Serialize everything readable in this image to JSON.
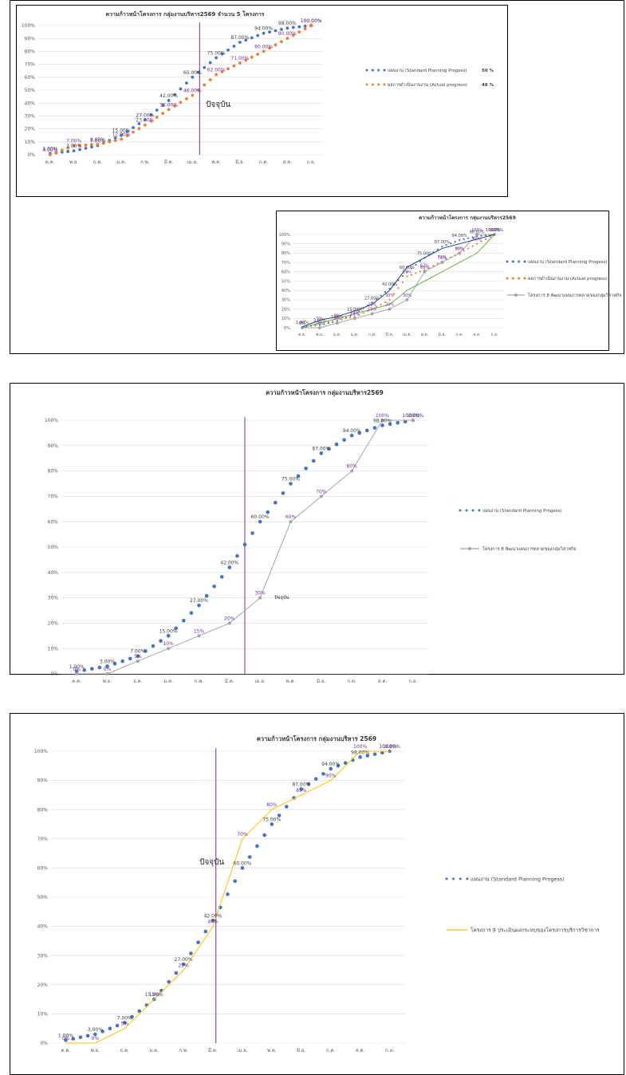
{
  "chart_data": [
    {
      "type": "line",
      "title": "ความก้าวหน้าโครงการ กลุ่มงานบริหาร2569 จำนวน 5 โครงการ",
      "categories": [
        "ต.ค.",
        "พ.ย.",
        "ธ.ค.",
        "ม.ค.",
        "ก.พ.",
        "มี.ค.",
        "เม.ย.",
        "พ.ค.",
        "มิ.ย.",
        "ก.ค.",
        "ส.ค.",
        "ก.ย."
      ],
      "y_ticks": [
        "0%",
        "10%",
        "20%",
        "30%",
        "40%",
        "50%",
        "60%",
        "70%",
        "80%",
        "90%",
        "100%"
      ],
      "ylim": [
        0,
        100
      ],
      "today_label": "ปัจจุบัน",
      "series": [
        {
          "name": "แผนงาน (Standard Planning Progess)",
          "color": "#4472c4",
          "style": "dotted",
          "values": [
            1,
            3,
            7,
            15,
            27,
            42,
            60,
            75,
            87,
            94,
            98,
            100
          ],
          "labels": [
            "1.00%",
            "3.00%",
            "7.00%",
            "15.00%",
            "27.00%",
            "42.00%",
            "60.00%",
            "75.00%",
            "87.00%",
            "94.00%",
            "98.00%",
            "100.00%"
          ],
          "legend_value": "50 %"
        },
        {
          "name": "ผลการดำเนินงานงาน (Actual progress)",
          "color": "#ed7d31",
          "style": "dotted",
          "values": [
            0,
            7,
            8,
            12,
            23,
            35,
            46,
            62,
            71,
            80,
            90,
            100
          ],
          "labels": [
            "0.00%",
            "7.00%",
            "8.00%",
            "12.00%",
            "23.00%",
            "35.00%",
            "46.00%",
            "62.00%",
            "71.00%",
            "80.00%",
            "90.00%",
            "100.00%"
          ],
          "legend_value": "48 %"
        }
      ]
    },
    {
      "type": "line",
      "title": "ความก้าวหน้าโครงการ กลุ่มงานบริหาร2569",
      "categories": [
        "ต.ค.",
        "พ.ย.",
        "ธ.ค.",
        "ม.ค.",
        "ก.พ.",
        "มี.ค.",
        "เม.ย.",
        "พ.ค.",
        "มิ.ย.",
        "ก.ค.",
        "ส.ค.",
        "ก.ย."
      ],
      "y_ticks": [
        "0%",
        "10%",
        "20%",
        "30%",
        "40%",
        "50%",
        "60%",
        "70%",
        "80%",
        "90%",
        "100%"
      ],
      "ylim": [
        0,
        100
      ],
      "series": [
        {
          "name": "แผนงาน (Standard Planning Progess)",
          "color": "#4472c4",
          "style": "dotted",
          "values": [
            1,
            3,
            7,
            15,
            27,
            42,
            60,
            75,
            87,
            94,
            98,
            100
          ],
          "labels": [
            "1.00%",
            "3.00%",
            "7.00%",
            "15.00%",
            "27.00%",
            "42.00%",
            "60.00%",
            "75.00%",
            "87.00%",
            "94.00%",
            "98.00%",
            "100.00%"
          ]
        },
        {
          "name": "ผลการดำเนินงานงาน (Actual progress)",
          "color": "#ed7d31",
          "style": "dotted",
          "values": [
            0,
            5,
            8,
            12,
            20,
            30,
            55,
            62,
            71,
            80,
            90,
            100
          ],
          "labels": [
            "0%",
            "5%",
            "8%",
            "12%",
            "20%",
            "30%",
            "55%",
            "62%",
            "71%",
            "80%",
            "90%",
            "100%"
          ]
        },
        {
          "name": "โครงการ 8 พัฒนาแผนการตลาดของกลุ่มวิสาหกิจ",
          "color": "#a5a5a5",
          "style": "solid",
          "values": [
            0,
            0,
            5,
            10,
            15,
            20,
            30,
            60,
            70,
            80,
            100,
            100
          ],
          "labels": [
            "0%",
            "0%",
            "5%",
            "10%",
            "15%",
            "20%",
            "30%",
            "60%",
            "70%",
            "80%",
            "100%",
            "100%"
          ]
        },
        {
          "name": "",
          "color": "#70ad47",
          "style": "solid",
          "values": [
            0,
            5,
            10,
            15,
            20,
            25,
            40,
            50,
            60,
            70,
            80,
            100
          ],
          "labels": []
        },
        {
          "name": "",
          "color": "#264478",
          "style": "solid",
          "values": [
            1,
            8,
            12,
            18,
            25,
            40,
            65,
            75,
            85,
            90,
            95,
            100
          ],
          "labels": []
        }
      ]
    },
    {
      "type": "line",
      "title": "ความก้าวหน้าโครงการ กลุ่มงานบริหาร2569",
      "categories": [
        "ต.ค.",
        "พ.ย.",
        "ธ.ค.",
        "ม.ค.",
        "ก.พ.",
        "มี.ค.",
        "เม.ย.",
        "พ.ค.",
        "มิ.ย.",
        "ก.ค.",
        "ส.ค.",
        "ก.ย."
      ],
      "y_ticks": [
        "0%",
        "10%",
        "20%",
        "30%",
        "40%",
        "50%",
        "60%",
        "70%",
        "80%",
        "90%",
        "100%"
      ],
      "ylim": [
        0,
        100
      ],
      "today_label": "ปัจจุบัน",
      "series": [
        {
          "name": "แผนงาน (Standard Planning Progess)",
          "color": "#4472c4",
          "style": "dotted",
          "values": [
            1,
            3,
            7,
            15,
            27,
            42,
            60,
            75,
            87,
            94,
            98,
            100
          ],
          "labels": [
            "1.00%",
            "3.00%",
            "7.00%",
            "15.00%",
            "27.00%",
            "42.00%",
            "60.00%",
            "75.00%",
            "87.00%",
            "94.00%",
            "98.00%",
            "100.00%"
          ]
        },
        {
          "name": "โครงการ 8 พัฒนาแผนการตลาดของกลุ่มวิสาหกิจ",
          "color": "#a5a5a5",
          "style": "solid",
          "values": [
            0,
            0,
            5,
            10,
            15,
            20,
            30,
            60,
            70,
            80,
            100,
            100
          ],
          "labels": [
            "0%",
            "0%",
            "5%",
            "10%",
            "15%",
            "20%",
            "30%",
            "60%",
            "70%",
            "80%",
            "100%",
            "100%"
          ]
        }
      ]
    },
    {
      "type": "line",
      "title": "ความก้าวหน้าโครงการ กลุ่มงานบริหาร 2569",
      "categories": [
        "ต.ค.",
        "พ.ย.",
        "ธ.ค.",
        "ม.ค.",
        "ก.พ.",
        "มี.ค.",
        "เม.ย.",
        "พ.ค.",
        "มิ.ย.",
        "ก.ค.",
        "ส.ค.",
        "ก.ย."
      ],
      "y_ticks": [
        "0%",
        "10%",
        "20%",
        "30%",
        "40%",
        "50%",
        "60%",
        "70%",
        "80%",
        "90%",
        "100%"
      ],
      "ylim": [
        0,
        100
      ],
      "today_label": "ปัจจุบัน",
      "series": [
        {
          "name": "แผนงาน (Standard Planning Progess)",
          "color": "#4472c4",
          "style": "dotted",
          "values": [
            1,
            3,
            7,
            15,
            27,
            42,
            60,
            75,
            87,
            94,
            98,
            100
          ],
          "labels": [
            "1.00%",
            "3.00%",
            "7.00%",
            "15.00%",
            "27.00%",
            "42.00%",
            "60.00%",
            "75.00%",
            "87.00%",
            "94.00%",
            "98.00%",
            "100.00%"
          ]
        },
        {
          "name": "โครงการ 9 ประเมินผลกระทบของโครงการบริการวิชาการ",
          "color": "#ffc000",
          "style": "solid",
          "values": [
            0,
            0,
            5,
            15,
            25,
            40,
            70,
            80,
            85,
            90,
            100,
            100
          ],
          "labels": [
            "0%",
            "0%",
            "5%",
            "15%",
            "25%",
            "40%",
            "70%",
            "80%",
            "85%",
            "90%",
            "100%",
            "100%"
          ]
        }
      ]
    }
  ]
}
